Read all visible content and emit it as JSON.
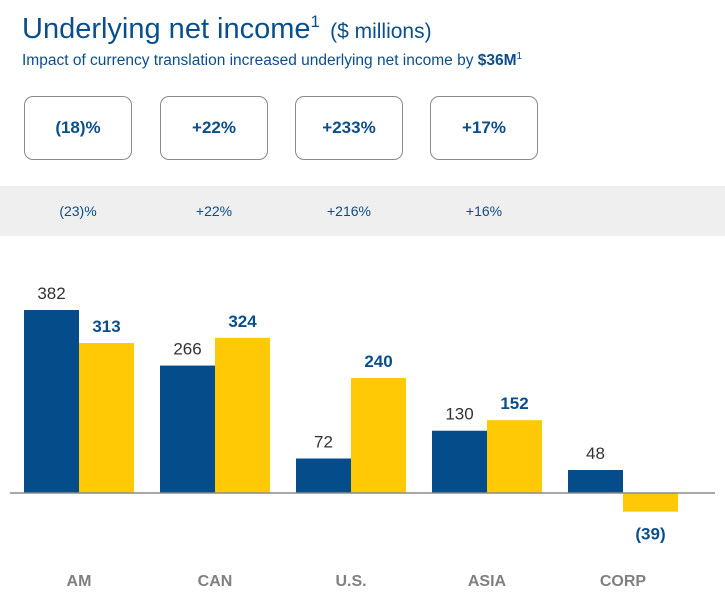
{
  "header": {
    "title": "Underlying net income",
    "title_sup": "1",
    "title_units": "($ millions)",
    "subtitle_prefix": "Impact of currency translation increased underlying net income by ",
    "subtitle_value": "$36M",
    "subtitle_sup": "1"
  },
  "growth_boxes": [
    "(18)%",
    "+22%",
    "+233%",
    "+17%"
  ],
  "constant_currency_row": [
    "(23)%",
    "+22%",
    "+216%",
    "+16%"
  ],
  "colors": {
    "series_prior": "#044d8a",
    "series_current": "#ffc906",
    "text_blue": "#0b4e8c",
    "category_label": "#808080"
  },
  "chart_data": {
    "type": "bar",
    "categories": [
      "AM",
      "CAN",
      "U.S.",
      "ASIA",
      "CORP"
    ],
    "series": [
      {
        "values": [
          382,
          266,
          72,
          130,
          48
        ]
      },
      {
        "values": [
          313,
          324,
          240,
          152,
          -39
        ]
      }
    ],
    "data_labels": [
      [
        "382",
        "266",
        "72",
        "130",
        "48"
      ],
      [
        "313",
        "324",
        "240",
        "152",
        "(39)"
      ]
    ]
  }
}
